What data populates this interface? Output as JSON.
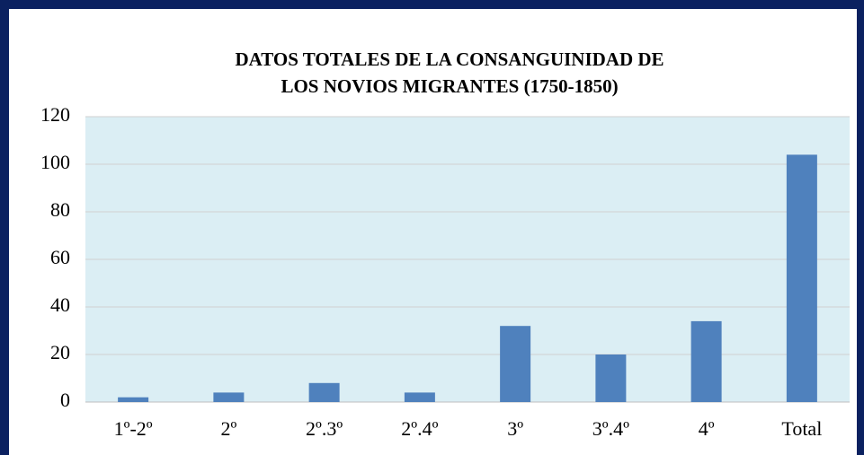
{
  "chart_data": {
    "type": "bar",
    "title": [
      "DATOS TOTALES DE LA CONSANGUINIDAD DE",
      "LOS NOVIOS MIGRANTES (1750-1850)"
    ],
    "categories": [
      "1º-2º",
      "2º",
      "2º.3º",
      "2º.4º",
      "3º",
      "3º.4º",
      "4º",
      "Total"
    ],
    "values": [
      2,
      4,
      8,
      4,
      32,
      20,
      34,
      104
    ],
    "color": "#4f81bd",
    "ylim": [
      0,
      120
    ],
    "yticks": [
      0,
      20,
      40,
      60,
      80,
      100,
      120
    ],
    "grid": true
  }
}
